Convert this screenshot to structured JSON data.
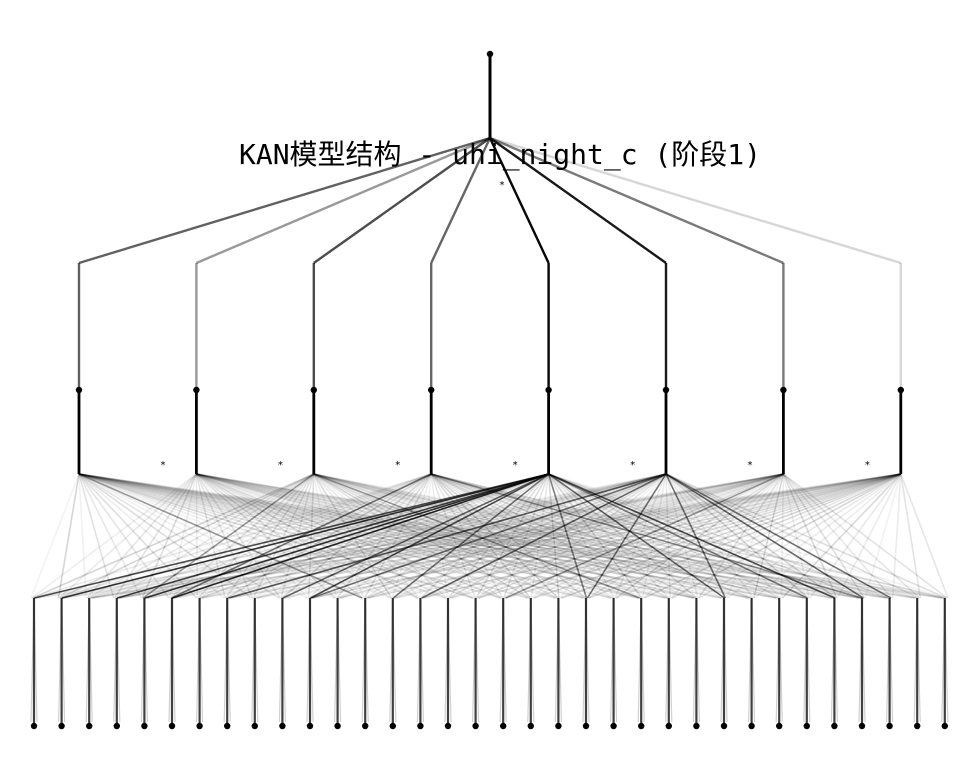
{
  "title": "KAN模型结构 - uhi_night_c (阶段1)",
  "diagram": {
    "type": "kan-network",
    "layers": [
      {
        "count": 34,
        "role": "input"
      },
      {
        "count": 8,
        "role": "hidden"
      },
      {
        "count": 1,
        "role": "output"
      }
    ],
    "mid_weights": [
      0.62,
      0.4,
      0.7,
      0.6,
      0.98,
      0.9,
      0.52,
      0.16
    ],
    "strong_input_links": [
      [
        0,
        4,
        0.7
      ],
      [
        1,
        4,
        0.8
      ],
      [
        3,
        4,
        0.75
      ],
      [
        4,
        4,
        0.8
      ],
      [
        5,
        4,
        0.85
      ],
      [
        5,
        3,
        0.55
      ],
      [
        7,
        5,
        0.65
      ],
      [
        9,
        4,
        0.6
      ],
      [
        10,
        4,
        0.7
      ],
      [
        10,
        5,
        0.55
      ],
      [
        13,
        4,
        0.55
      ],
      [
        14,
        5,
        0.6
      ],
      [
        20,
        4,
        0.5
      ],
      [
        20,
        5,
        0.55
      ],
      [
        25,
        4,
        0.6
      ],
      [
        25,
        5,
        0.55
      ],
      [
        28,
        4,
        0.5
      ],
      [
        29,
        4,
        0.7
      ],
      [
        30,
        5,
        0.6
      ],
      [
        31,
        5,
        0.55
      ],
      [
        30,
        3,
        0.45
      ],
      [
        22,
        2,
        0.4
      ],
      [
        4,
        2,
        0.4
      ],
      [
        17,
        6,
        0.4
      ],
      [
        12,
        0,
        0.4
      ]
    ],
    "symbol": "*",
    "line_color": "#000000"
  }
}
